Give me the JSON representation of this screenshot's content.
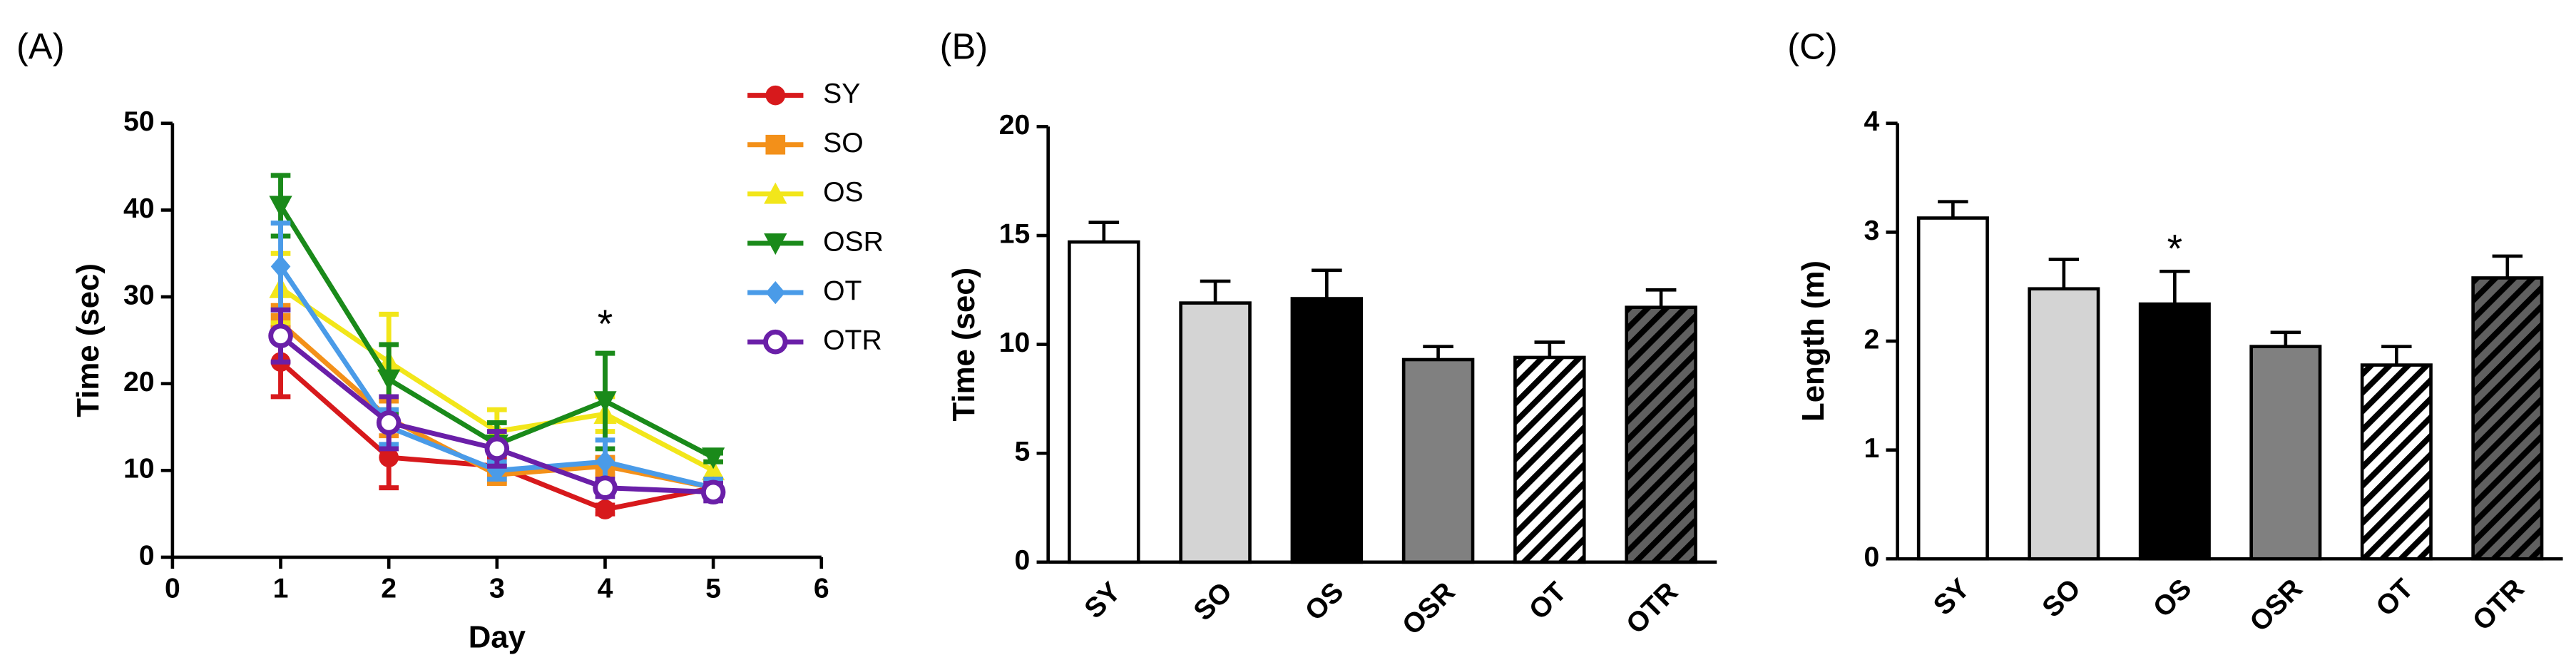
{
  "chart_data": [
    {
      "type": "line",
      "panel_label": "(A)",
      "x_label": "Day",
      "y_label": "Time (sec)",
      "x": [
        1,
        2,
        3,
        4,
        5
      ],
      "xlim": [
        0,
        6
      ],
      "xticks": [
        0,
        1,
        2,
        3,
        4,
        5,
        6
      ],
      "ylim": [
        0,
        50
      ],
      "yticks": [
        0,
        10,
        20,
        30,
        40,
        50
      ],
      "series": [
        {
          "name": "SY",
          "color": "#d7191c",
          "marker": "circle",
          "values": [
            22.5,
            11.5,
            10.5,
            5.5,
            8
          ],
          "errors": [
            4,
            3.5,
            1,
            0.5,
            1
          ]
        },
        {
          "name": "SO",
          "color": "#f39019",
          "marker": "square",
          "values": [
            27,
            16,
            9.5,
            10.5,
            8
          ],
          "errors": [
            2,
            2,
            1,
            1,
            1
          ]
        },
        {
          "name": "OS",
          "color": "#f2e61a",
          "marker": "triangle-up",
          "values": [
            31,
            22.5,
            14.5,
            16.5,
            10
          ],
          "errors": [
            4,
            5.5,
            2.5,
            2,
            1
          ]
        },
        {
          "name": "OSR",
          "color": "#1a8a1a",
          "marker": "triangle-down",
          "values": [
            40.5,
            20.5,
            13,
            18,
            11.5
          ],
          "errors": [
            3.5,
            4,
            2.5,
            5.5,
            0.5
          ]
        },
        {
          "name": "OT",
          "color": "#4a9be8",
          "marker": "diamond",
          "values": [
            33.5,
            15,
            10,
            11,
            8
          ],
          "errors": [
            5,
            2,
            1,
            2.5,
            1
          ]
        },
        {
          "name": "OTR",
          "color": "#6a1fa8",
          "marker": "open-circle",
          "values": [
            25.5,
            15.5,
            12.5,
            8,
            7.5
          ],
          "errors": [
            3,
            3,
            2,
            1,
            1
          ]
        }
      ],
      "annotations": [
        {
          "text": "*",
          "x": 4,
          "y": 26.5
        }
      ]
    },
    {
      "type": "bar",
      "panel_label": "(B)",
      "y_label": "Time (sec)",
      "categories": [
        "SY",
        "SO",
        "OS",
        "OSR",
        "OT",
        "OTR"
      ],
      "values": [
        14.7,
        11.9,
        12.1,
        9.3,
        9.4,
        11.7
      ],
      "errors": [
        0.9,
        1.0,
        1.3,
        0.6,
        0.7,
        0.8
      ],
      "colors": [
        "#ffffff",
        "#d4d4d4",
        "#000000",
        "#808080",
        "#ffffff",
        "#606060"
      ],
      "hatch": [
        false,
        false,
        false,
        false,
        true,
        true
      ],
      "ylim": [
        0,
        20
      ],
      "yticks": [
        0,
        5,
        10,
        15,
        20
      ],
      "annotations": []
    },
    {
      "type": "bar",
      "panel_label": "(C)",
      "y_label": "Length (m)",
      "categories": [
        "SY",
        "SO",
        "OS",
        "OSR",
        "OT",
        "OTR"
      ],
      "values": [
        3.13,
        2.48,
        2.34,
        1.95,
        1.78,
        2.58
      ],
      "errors": [
        0.15,
        0.27,
        0.3,
        0.13,
        0.17,
        0.2
      ],
      "colors": [
        "#ffffff",
        "#d4d4d4",
        "#000000",
        "#808080",
        "#ffffff",
        "#606060"
      ],
      "hatch": [
        false,
        false,
        false,
        false,
        true,
        true
      ],
      "ylim": [
        0,
        4
      ],
      "yticks": [
        0,
        1,
        2,
        3,
        4
      ],
      "annotations": [
        {
          "text": "*",
          "x": "OS",
          "y": 2.82
        }
      ]
    }
  ]
}
